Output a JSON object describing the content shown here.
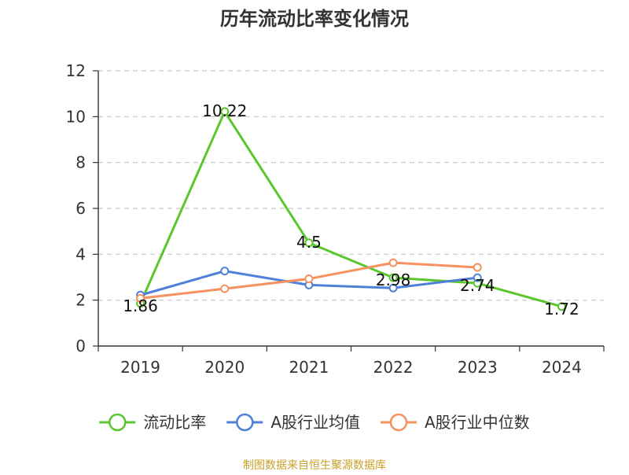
{
  "chart_data": {
    "type": "line",
    "title": "历年流动比率变化情况",
    "categories": [
      "2019",
      "2020",
      "2021",
      "2022",
      "2023",
      "2024"
    ],
    "ylim": [
      0,
      12
    ],
    "yticks": [
      0,
      2,
      4,
      6,
      8,
      10,
      12
    ],
    "grid": true,
    "legend_position": "bottom",
    "series": [
      {
        "name": "流动比率",
        "color": "#5ac72d",
        "values": [
          1.86,
          10.22,
          4.5,
          2.98,
          2.74,
          1.72
        ],
        "labels": [
          "1.86",
          "10.22",
          "4.5",
          "2.98",
          "2.74",
          "1.72"
        ]
      },
      {
        "name": "A股行业均值",
        "color": "#4f80d8",
        "values": [
          2.22,
          3.27,
          2.66,
          2.53,
          2.98,
          null
        ]
      },
      {
        "name": "A股行业中位数",
        "color": "#f5925f",
        "values": [
          2.08,
          2.5,
          2.93,
          3.63,
          3.43,
          null
        ]
      }
    ],
    "source": "制图数据来自恒生聚源数据库"
  }
}
